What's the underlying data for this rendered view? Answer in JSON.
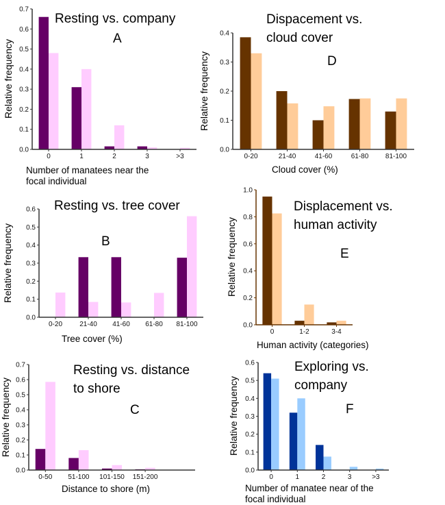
{
  "chart_data": [
    {
      "type": "bar",
      "panel": "A",
      "title": [
        "Resting vs. company"
      ],
      "xlabel": [
        "Number of manatees near the",
        "focal individual"
      ],
      "ylabel": "Relative frequency",
      "categories": [
        "0",
        "1",
        "2",
        "3",
        ">3"
      ],
      "ylim": [
        0,
        0.7
      ],
      "yticks": [
        "0.0",
        "0.1",
        "0.2",
        "0.3",
        "0.4",
        "0.5",
        "0.6",
        "0.7"
      ],
      "series": [
        {
          "values": [
            0.66,
            0.31,
            0.015,
            0.015,
            0
          ],
          "color": "#660066"
        },
        {
          "values": [
            0.48,
            0.4,
            0.12,
            0.01,
            0.008
          ],
          "color": "#ffccff"
        }
      ]
    },
    {
      "type": "bar",
      "panel": "D",
      "title": [
        "Dispacement vs.",
        "cloud cover"
      ],
      "xlabel": [
        "Cloud cover (%)"
      ],
      "ylabel": "Relative frequency",
      "categories": [
        "0-20",
        "21-40",
        "41-60",
        "61-80",
        "81-100"
      ],
      "ylim": [
        0,
        0.4
      ],
      "yticks": [
        "0.0",
        "0.1",
        "0.2",
        "0.3",
        "0.4"
      ],
      "series": [
        {
          "values": [
            0.385,
            0.2,
            0.1,
            0.173,
            0.13
          ],
          "color": "#663300"
        },
        {
          "values": [
            0.33,
            0.158,
            0.148,
            0.175,
            0.175
          ],
          "color": "#ffcc99"
        }
      ]
    },
    {
      "type": "bar",
      "panel": "B",
      "title": [
        "Resting vs. tree cover"
      ],
      "xlabel": [
        "Tree cover (%)"
      ],
      "ylabel": "Relative frequency",
      "categories": [
        "0-20",
        "21-40",
        "41-60",
        "61-80",
        "81-100"
      ],
      "ylim": [
        0,
        0.6
      ],
      "yticks": [
        "0.0",
        "0.1",
        "0.2",
        "0.3",
        "0.4",
        "0.5",
        "0.6"
      ],
      "series": [
        {
          "values": [
            0,
            0.333,
            0.333,
            0,
            0.33
          ],
          "color": "#660066"
        },
        {
          "values": [
            0.137,
            0.085,
            0.082,
            0.135,
            0.56
          ],
          "color": "#ffccff"
        }
      ]
    },
    {
      "type": "bar",
      "panel": "E",
      "title": [
        "Displacement vs.",
        "human activity"
      ],
      "xlabel": [
        "Human activity (categories)"
      ],
      "ylabel": "Relative frequency",
      "categories": [
        "0",
        "1-2",
        "3-4"
      ],
      "ylim": [
        0,
        1.0
      ],
      "yticks": [
        "0.0",
        "0.2",
        "0.4",
        "0.6",
        "0.8",
        "1.0"
      ],
      "series": [
        {
          "values": [
            0.95,
            0.03,
            0.018
          ],
          "color": "#663300"
        },
        {
          "values": [
            0.825,
            0.15,
            0.03
          ],
          "color": "#ffcc99"
        }
      ]
    },
    {
      "type": "bar",
      "panel": "C",
      "title": [
        "Resting vs. distance",
        "to shore"
      ],
      "xlabel": [
        "Distance to shore (m)"
      ],
      "ylabel": "Relative frequency",
      "categories": [
        "0-50",
        "51-100",
        "101-150",
        "151-200"
      ],
      "ylim": [
        0,
        0.7
      ],
      "yticks": [
        "0.0",
        "0.1",
        "0.2",
        "0.3",
        "0.4",
        "0.5",
        "0.6",
        "0.7"
      ],
      "series": [
        {
          "values": [
            0.14,
            0.08,
            0.01,
            0.005
          ],
          "color": "#660066"
        },
        {
          "values": [
            0.585,
            0.132,
            0.033,
            0.015
          ],
          "color": "#ffccff"
        }
      ]
    },
    {
      "type": "bar",
      "panel": "F",
      "title": [
        "Exploring vs.",
        "company"
      ],
      "xlabel": [
        "Number of manatee near of the",
        "focal individual"
      ],
      "ylabel": "Relative frequency",
      "categories": [
        "0",
        "1",
        "2",
        "3",
        ">3"
      ],
      "ylim": [
        0,
        0.6
      ],
      "yticks": [
        "0.0",
        "0.1",
        "0.2",
        "0.3",
        "0.4",
        "0.5",
        "0.6"
      ],
      "series": [
        {
          "values": [
            0.54,
            0.32,
            0.14,
            0,
            0
          ],
          "color": "#003399"
        },
        {
          "values": [
            0.51,
            0.4,
            0.075,
            0.018,
            0.008
          ],
          "color": "#99ccff"
        }
      ]
    }
  ]
}
